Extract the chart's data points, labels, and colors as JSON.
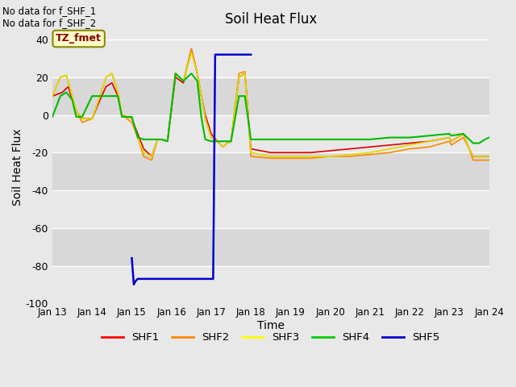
{
  "title": "Soil Heat Flux",
  "xlabel": "Time",
  "ylabel": "Soil Heat Flux",
  "ylim": [
    -100,
    45
  ],
  "yticks": [
    -100,
    -80,
    -60,
    -40,
    -20,
    0,
    20,
    40
  ],
  "background_color": "#e8e8e8",
  "plot_bg_color": "#e8e8e8",
  "grid_color": "white",
  "no_data_text": [
    "No data for f_SHF_1",
    "No data for f_SHF_2"
  ],
  "tz_label": "TZ_fmet",
  "legend_entries": [
    "SHF1",
    "SHF2",
    "SHF3",
    "SHF4",
    "SHF5"
  ],
  "legend_colors": [
    "#ff0000",
    "#ff8800",
    "#ffff00",
    "#00cc00",
    "#0000cc"
  ],
  "x_tick_labels": [
    "Jan 13",
    "Jan 14",
    "Jan 15",
    "Jan 16",
    "Jan 17",
    "Jan 18",
    "Jan 19",
    "Jan 20",
    "Jan 21",
    "Jan 22",
    "Jan 23",
    "Jan 24"
  ],
  "series": {
    "SHF1": {
      "color": "#dd0000",
      "lw": 1.2,
      "x": [
        0,
        0.25,
        0.4,
        0.5,
        0.6,
        0.75,
        1.0,
        1.2,
        1.35,
        1.5,
        1.65,
        1.75,
        2.0,
        2.15,
        2.3,
        2.5,
        2.65,
        2.75,
        2.9,
        3.1,
        3.3,
        3.5,
        3.65,
        3.75,
        3.85,
        4.0,
        4.15,
        4.3,
        4.4,
        4.5,
        4.7,
        4.85,
        5.0,
        5.5,
        6.0,
        6.5,
        7.0,
        7.5,
        8.0,
        8.5,
        9.0,
        9.5,
        10.0,
        10.05,
        10.35,
        10.5,
        10.6,
        10.75,
        10.9,
        11.0
      ],
      "y": [
        10,
        12,
        15,
        8,
        2,
        -2,
        -2,
        8,
        15,
        17,
        10,
        0,
        -2,
        -10,
        -18,
        -22,
        -13,
        -13,
        -14,
        20,
        17,
        35,
        22,
        10,
        0,
        -10,
        -14,
        -17,
        -15,
        -14,
        20,
        22,
        -18,
        -20,
        -20,
        -20,
        -19,
        -18,
        -17,
        -16,
        -15,
        -14,
        -12,
        -14,
        -10,
        -18,
        -22,
        -22,
        -22,
        -22
      ]
    },
    "SHF2": {
      "color": "#ff8800",
      "lw": 1.2,
      "x": [
        0,
        0.2,
        0.35,
        0.5,
        0.6,
        0.75,
        1.0,
        1.2,
        1.35,
        1.5,
        1.65,
        1.75,
        2.0,
        2.15,
        2.3,
        2.5,
        2.65,
        2.75,
        2.9,
        3.1,
        3.3,
        3.5,
        3.65,
        3.75,
        3.85,
        4.0,
        4.15,
        4.3,
        4.4,
        4.5,
        4.7,
        4.85,
        5.0,
        5.5,
        6.0,
        6.5,
        7.0,
        7.5,
        8.0,
        8.5,
        9.0,
        9.5,
        10.0,
        10.05,
        10.35,
        10.5,
        10.6,
        10.75,
        10.9,
        11.0
      ],
      "y": [
        10,
        20,
        21,
        10,
        2,
        -4,
        -2,
        10,
        20,
        22,
        12,
        0,
        -4,
        -12,
        -22,
        -24,
        -13,
        -13,
        -14,
        22,
        18,
        35,
        22,
        10,
        -2,
        -12,
        -14,
        -17,
        -15,
        -14,
        22,
        23,
        -22,
        -23,
        -23,
        -23,
        -22,
        -22,
        -21,
        -20,
        -18,
        -17,
        -14,
        -16,
        -12,
        -18,
        -24,
        -24,
        -24,
        -24
      ]
    },
    "SHF3": {
      "color": "#dddd00",
      "lw": 1.2,
      "x": [
        0,
        0.2,
        0.35,
        0.5,
        0.6,
        0.75,
        1.0,
        1.2,
        1.35,
        1.5,
        1.65,
        1.75,
        2.0,
        2.15,
        2.3,
        2.5,
        2.65,
        2.75,
        2.9,
        3.1,
        3.3,
        3.5,
        3.65,
        3.75,
        3.85,
        4.0,
        4.15,
        4.3,
        4.4,
        4.5,
        4.7,
        4.85,
        5.0,
        5.5,
        6.0,
        6.5,
        7.0,
        7.5,
        8.0,
        8.5,
        9.0,
        9.5,
        10.0,
        10.05,
        10.35,
        10.5,
        10.6,
        10.75,
        10.9,
        11.0
      ],
      "y": [
        10,
        20,
        21,
        10,
        2,
        -2,
        -2,
        10,
        20,
        22,
        12,
        0,
        -2,
        -12,
        -20,
        -22,
        -13,
        -13,
        -14,
        22,
        18,
        33,
        22,
        10,
        -2,
        -12,
        -14,
        -17,
        -15,
        -14,
        20,
        22,
        -20,
        -22,
        -22,
        -22,
        -22,
        -21,
        -20,
        -18,
        -16,
        -14,
        -12,
        -14,
        -10,
        -18,
        -22,
        -22,
        -22,
        -22
      ]
    },
    "SHF4": {
      "color": "#00bb00",
      "lw": 1.5,
      "x": [
        0,
        0.2,
        0.35,
        0.5,
        0.6,
        0.75,
        1.0,
        1.2,
        1.35,
        1.5,
        1.65,
        1.75,
        2.0,
        2.15,
        2.3,
        2.5,
        2.65,
        2.75,
        2.9,
        3.1,
        3.3,
        3.5,
        3.65,
        3.75,
        3.85,
        4.0,
        4.15,
        4.3,
        4.4,
        4.5,
        4.7,
        4.85,
        5.0,
        5.5,
        6.0,
        6.5,
        7.0,
        7.5,
        8.0,
        8.5,
        9.0,
        9.5,
        10.0,
        10.05,
        10.35,
        10.5,
        10.6,
        10.75,
        10.9,
        11.0
      ],
      "y": [
        -1,
        10,
        12,
        8,
        -1,
        -1,
        10,
        10,
        10,
        10,
        10,
        -1,
        -1,
        -12,
        -13,
        -13,
        -13,
        -13,
        -14,
        22,
        18,
        22,
        18,
        -1,
        -13,
        -14,
        -14,
        -14,
        -14,
        -14,
        10,
        10,
        -13,
        -13,
        -13,
        -13,
        -13,
        -13,
        -13,
        -12,
        -12,
        -11,
        -10,
        -11,
        -10,
        -13,
        -15,
        -15,
        -13,
        -12
      ]
    },
    "SHF5": {
      "color": "#0000cc",
      "lw": 1.8,
      "x": [
        2.0,
        2.05,
        2.1,
        2.15,
        2.5,
        3.0,
        3.5,
        3.8,
        4.0,
        4.05,
        4.1,
        4.12,
        4.15,
        5.0
      ],
      "y": [
        -76,
        -90,
        -88,
        -87,
        -87,
        -87,
        -87,
        -87,
        -87,
        -87,
        32,
        32,
        32,
        32
      ]
    }
  }
}
